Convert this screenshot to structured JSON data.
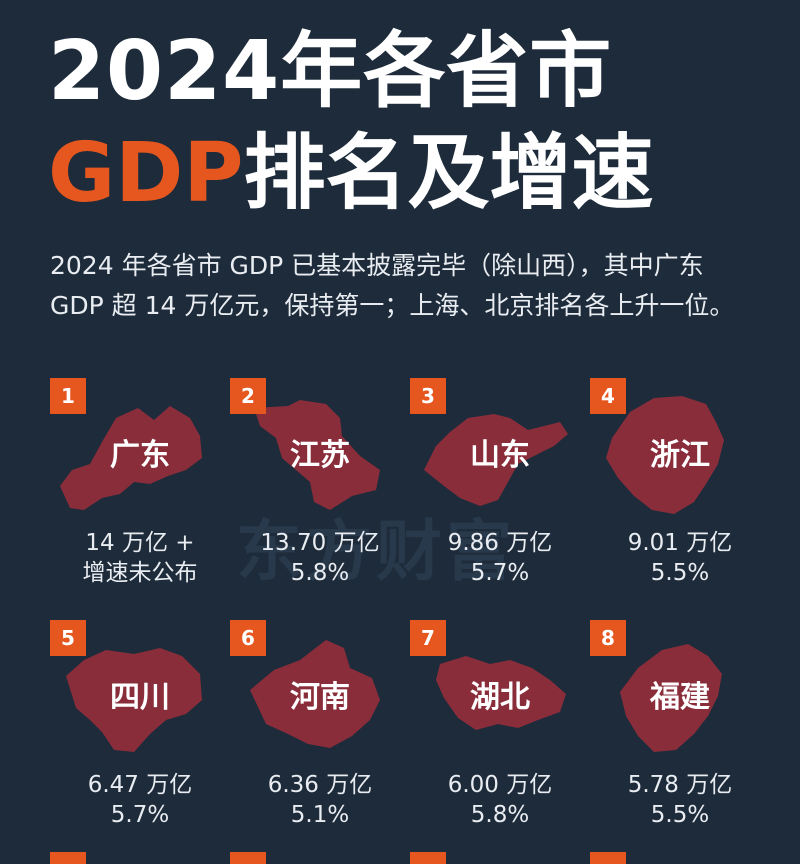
{
  "title_line1": "2024年各省市",
  "title_line2_accent": "GDP",
  "title_line2_rest": "排名及增速",
  "intro_line1": "2024 年各省市 GDP 已基本披露完毕（除山西），其中广东",
  "intro_line2": "GDP 超 14 万亿元，保持第一；上海、北京排名各上升一位。",
  "watermark": "东方财富",
  "colors": {
    "background": "#1d2b3a",
    "accent": "#e5571f",
    "map": "#8a2d3b"
  },
  "provinces": [
    {
      "rank": "1",
      "name": "广东",
      "gdp": "14 万亿 +",
      "growth": "增速未公布",
      "shape": "guangdong-map"
    },
    {
      "rank": "2",
      "name": "江苏",
      "gdp": "13.70 万亿",
      "growth": "5.8%",
      "shape": "jiangsu-map"
    },
    {
      "rank": "3",
      "name": "山东",
      "gdp": "9.86 万亿",
      "growth": "5.7%",
      "shape": "shandong-map"
    },
    {
      "rank": "4",
      "name": "浙江",
      "gdp": "9.01 万亿",
      "growth": "5.5%",
      "shape": "zhejiang-map"
    },
    {
      "rank": "5",
      "name": "四川",
      "gdp": "6.47 万亿",
      "growth": "5.7%",
      "shape": "sichuan-map"
    },
    {
      "rank": "6",
      "name": "河南",
      "gdp": "6.36 万亿",
      "growth": "5.1%",
      "shape": "henan-map"
    },
    {
      "rank": "7",
      "name": "湖北",
      "gdp": "6.00 万亿",
      "growth": "5.8%",
      "shape": "hubei-map"
    },
    {
      "rank": "8",
      "name": "福建",
      "gdp": "5.78 万亿",
      "growth": "5.5%",
      "shape": "fujian-map"
    }
  ]
}
